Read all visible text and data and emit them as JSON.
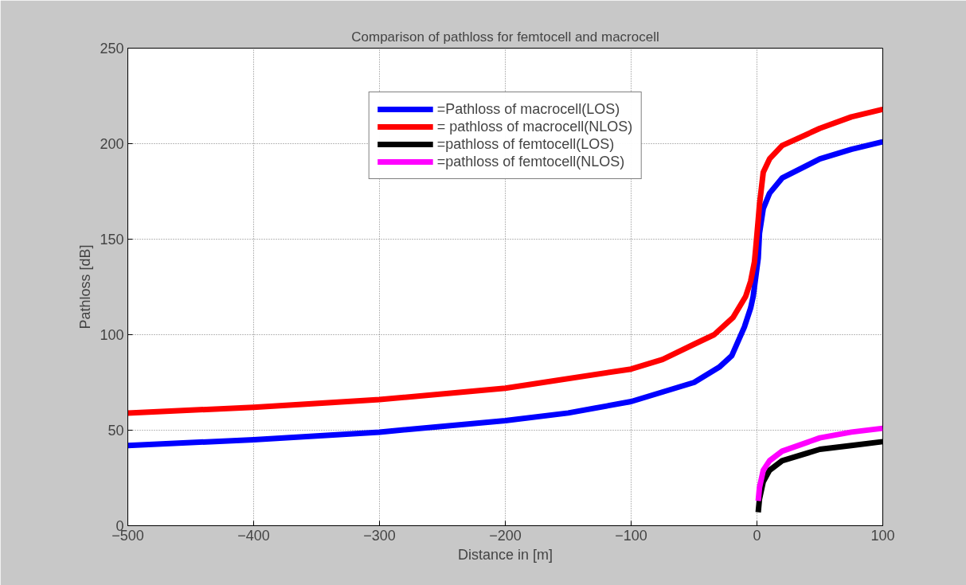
{
  "chart_data": {
    "type": "line",
    "title": "Comparison of pathloss for femtocell and macrocell",
    "xlabel": "Distance in [m]",
    "ylabel": "Pathloss [dB]",
    "xlim": [
      -500,
      100
    ],
    "ylim": [
      0,
      250
    ],
    "xticks": [
      -500,
      -400,
      -300,
      -200,
      -100,
      0,
      100
    ],
    "yticks": [
      0,
      50,
      100,
      150,
      200,
      250
    ],
    "grid": true,
    "legend": "top",
    "line_style": "solid",
    "marker": "none",
    "series": [
      {
        "name": "=Pathloss of macrocell(LOS)",
        "color": "#0000ff",
        "x": [
          -500,
          -400,
          -300,
          -200,
          -150,
          -100,
          -75,
          -50,
          -30,
          -20,
          -10,
          -5,
          -3,
          -1,
          1,
          2,
          5,
          10,
          20,
          50,
          75,
          100
        ],
        "values": [
          42,
          45,
          49,
          55,
          59,
          65,
          70,
          75,
          83,
          89,
          104,
          114,
          120,
          130,
          140,
          153,
          166,
          174,
          182,
          192,
          197,
          201
        ]
      },
      {
        "name": "= pathloss of macrocell(NLOS)",
        "color": "#ff0000",
        "x": [
          -500,
          -400,
          -300,
          -200,
          -100,
          -75,
          -50,
          -34,
          -19,
          -9,
          -5,
          -2,
          -1,
          1,
          2,
          5,
          10,
          20,
          50,
          75,
          100
        ],
        "values": [
          59,
          62,
          66,
          72,
          82,
          87,
          95,
          100,
          109,
          120,
          128,
          138,
          145,
          160,
          168,
          185,
          192,
          199,
          208,
          214,
          218
        ]
      },
      {
        "name": "=pathloss of femtocell(LOS)",
        "color": "#000000",
        "x": [
          1,
          2,
          5,
          10,
          20,
          50,
          75,
          100
        ],
        "values": [
          7,
          14,
          23,
          29,
          34,
          40,
          42,
          44
        ]
      },
      {
        "name": "=pathloss of femtocell(NLOS)",
        "color": "#ff00ff",
        "x": [
          1,
          2,
          5,
          10,
          20,
          50,
          75,
          100
        ],
        "values": [
          13,
          20,
          29,
          34,
          39,
          46,
          49,
          51
        ]
      }
    ]
  }
}
